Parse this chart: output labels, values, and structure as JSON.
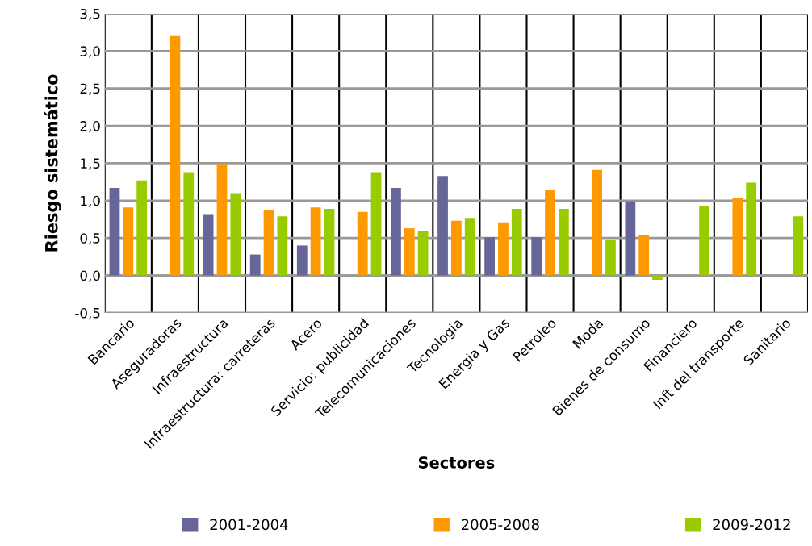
{
  "chart_data": {
    "type": "bar",
    "xlabel": "Sectores",
    "ylabel": "Riesgo sistemático",
    "categories": [
      "Bancario",
      "Aseguradoras",
      "Infraestructura",
      "Infraestructura: carreteras",
      "Acero",
      "Servicio: publicidad",
      "Telecomunicaciones",
      "Tecnologia",
      "Energia y Gas",
      "Petroleo",
      "Moda",
      "Bienes de consumo",
      "Financiero",
      "Inft del transporte",
      "Sanitario"
    ],
    "series": [
      {
        "name": "2001-2004",
        "color": "#666699",
        "values": [
          1.17,
          null,
          0.82,
          0.28,
          0.4,
          null,
          1.17,
          1.33,
          0.51,
          0.51,
          null,
          0.99,
          null,
          null,
          null
        ]
      },
      {
        "name": "2005-2008",
        "color": "#ff9900",
        "values": [
          0.91,
          3.2,
          1.49,
          0.87,
          0.91,
          0.85,
          0.63,
          0.73,
          0.71,
          1.15,
          1.41,
          0.54,
          null,
          1.03,
          null
        ]
      },
      {
        "name": "2009-2012",
        "color": "#99cc00",
        "values": [
          1.27,
          1.38,
          1.1,
          0.79,
          0.89,
          1.38,
          0.59,
          0.77,
          0.89,
          0.89,
          0.47,
          -0.06,
          0.93,
          1.24,
          0.79
        ]
      }
    ],
    "ylim": [
      -0.5,
      3.5
    ],
    "yticks": [
      {
        "value": -0.5,
        "label": "-0,5"
      },
      {
        "value": 0,
        "label": "0,0"
      },
      {
        "value": 0.5,
        "label": "0,5"
      },
      {
        "value": 1,
        "label": "1,0"
      },
      {
        "value": 1.5,
        "label": "1,5"
      },
      {
        "value": 2,
        "label": "2,0"
      },
      {
        "value": 2.5,
        "label": "2,5"
      },
      {
        "value": 3,
        "label": "3,0"
      },
      {
        "value": 3.5,
        "label": "3,5"
      }
    ],
    "grid": true,
    "legend": "bottom"
  }
}
